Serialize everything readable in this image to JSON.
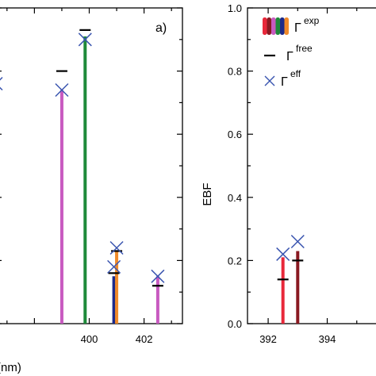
{
  "chart_data": [
    {
      "type": "bar",
      "panel_label": "a)",
      "xlabel": "(nm)",
      "ylabel": "",
      "xlim": [
        396.6,
        403.4
      ],
      "ylim": [
        0.0,
        1.0
      ],
      "xticks": [
        400,
        402
      ],
      "series": [
        {
          "name": "Γexp",
          "x": [
            399.0,
            399.85,
            400.9,
            401.0,
            402.5
          ],
          "values": [
            0.74,
            0.91,
            0.15,
            0.23,
            0.15
          ],
          "colors": [
            "#c85ac0",
            "#1e8a3a",
            "#1c2a8a",
            "#f08a2a",
            "#c85ac0"
          ]
        },
        {
          "name": "Γfree",
          "x": [
            399.0,
            399.85,
            400.9,
            401.0,
            402.5
          ],
          "values": [
            0.8,
            0.93,
            0.16,
            0.23,
            0.12
          ]
        },
        {
          "name": "Γeff",
          "x": [
            396.6,
            399.0,
            399.85,
            400.9,
            401.0,
            402.5
          ],
          "values": [
            0.76,
            0.74,
            0.9,
            0.18,
            0.24,
            0.15
          ]
        }
      ]
    },
    {
      "type": "bar",
      "xlabel": "",
      "ylabel": "EBF",
      "xlim": [
        391.3,
        396.0
      ],
      "ylim": [
        0.0,
        1.0
      ],
      "yticks": [
        "0.0",
        "0.2",
        "0.4",
        "0.6",
        "0.8",
        "1.0"
      ],
      "xticks": [
        392,
        394
      ],
      "series": [
        {
          "name": "Γexp",
          "x": [
            392.5,
            393.0
          ],
          "values": [
            0.21,
            0.23
          ],
          "colors": [
            "#e8283a",
            "#8a1a22"
          ]
        },
        {
          "name": "Γfree",
          "x": [
            392.5,
            393.0
          ],
          "values": [
            0.14,
            0.2
          ]
        },
        {
          "name": "Γeff",
          "x": [
            392.5,
            393.0
          ],
          "values": [
            0.22,
            0.26
          ]
        }
      ]
    }
  ],
  "legend": {
    "exp_symbol": "Γ",
    "exp_sup": "exp",
    "free_symbol": "Γ",
    "free_sup": "free",
    "eff_symbol": "Γ",
    "eff_sup": "eff",
    "swatch_colors": [
      "#e8283a",
      "#8a1a22",
      "#c85ac0",
      "#1e8a3a",
      "#1c2a8a",
      "#f08a2a"
    ]
  }
}
